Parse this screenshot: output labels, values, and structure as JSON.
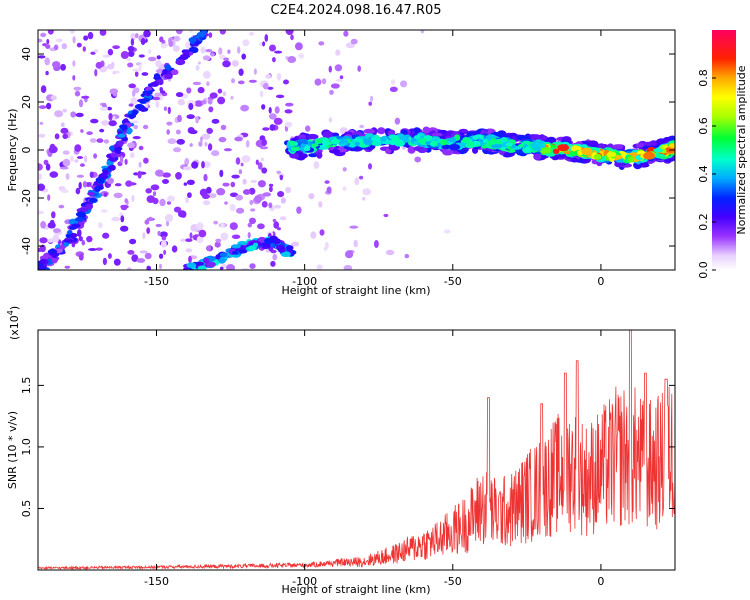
{
  "title": "C2E4.2024.098.16.47.R05",
  "chart_data": [
    {
      "type": "heatmap",
      "xlabel": "Height of straight line (km)",
      "ylabel": "Frequency (Hz)",
      "xlim": [
        -190,
        25
      ],
      "ylim": [
        -50,
        50
      ],
      "xticks": [
        -150,
        -100,
        -50,
        0
      ],
      "yticks": [
        -40,
        -20,
        0,
        20,
        40
      ],
      "colorbar": {
        "label": "Normalized spectral amplitude",
        "range": [
          0,
          1
        ],
        "ticks": [
          "0.0",
          "0.2",
          "0.4",
          "0.6",
          "0.8"
        ],
        "colors": [
          "#ffffff",
          "#f0e0ff",
          "#a040ff",
          "#6000ff",
          "#0000ff",
          "#00aaff",
          "#00ffcc",
          "#00ff00",
          "#aaff00",
          "#ffff00",
          "#ffaa00",
          "#ff0000",
          "#ff0060"
        ]
      },
      "features": [
        {
          "name": "main-trace",
          "points": [
            [
              -105,
              1
            ],
            [
              -90,
              3
            ],
            [
              -75,
              4
            ],
            [
              -60,
              4
            ],
            [
              -50,
              3
            ],
            [
              -40,
              4
            ],
            [
              -30,
              2
            ],
            [
              -20,
              1
            ],
            [
              -10,
              0
            ],
            [
              0,
              -2
            ],
            [
              10,
              -3
            ],
            [
              20,
              -1
            ],
            [
              25,
              1
            ]
          ]
        },
        {
          "name": "upper-diagonal",
          "points": [
            [
              -190,
              -50
            ],
            [
              -180,
              -38
            ],
            [
              -172,
              -20
            ],
            [
              -165,
              -5
            ],
            [
              -160,
              10
            ],
            [
              -150,
              28
            ],
            [
              -140,
              40
            ],
            [
              -133,
              50
            ]
          ]
        },
        {
          "name": "lower-diagonal",
          "points": [
            [
              -140,
              -50
            ],
            [
              -130,
              -46
            ],
            [
              -120,
              -40
            ],
            [
              -110,
              -38
            ],
            [
              -105,
              -43
            ]
          ]
        }
      ]
    },
    {
      "type": "line",
      "xlabel": "Height of straight line (km)",
      "ylabel": "SNR (10 * v/v)",
      "scale_label": "(x10",
      "scale_exp": "4",
      "scale_close": ")",
      "xlim": [
        -190,
        25
      ],
      "ylim": [
        0,
        1.95
      ],
      "xticks": [
        -150,
        -100,
        -50,
        0
      ],
      "yticks": [
        "0.5",
        "1.0",
        "1.5"
      ],
      "ytick_values": [
        0.5,
        1.0,
        1.5
      ],
      "line_color": "#ee3333",
      "envelope": {
        "x": [
          -190,
          -150,
          -120,
          -100,
          -90,
          -80,
          -70,
          -60,
          -55,
          -50,
          -45,
          -40,
          -35,
          -30,
          -25,
          -20,
          -15,
          -10,
          -5,
          0,
          5,
          10,
          15,
          20,
          25
        ],
        "y": [
          0.02,
          0.03,
          0.04,
          0.05,
          0.07,
          0.1,
          0.18,
          0.3,
          0.35,
          0.45,
          0.55,
          0.75,
          0.65,
          0.7,
          0.85,
          0.95,
          1.1,
          1.2,
          1.05,
          1.15,
          1.3,
          1.35,
          1.2,
          1.25,
          1.4
        ]
      },
      "peaks": [
        [
          -38,
          1.4
        ],
        [
          -20,
          1.35
        ],
        [
          -12,
          1.6
        ],
        [
          -8,
          1.7
        ],
        [
          10,
          1.95
        ],
        [
          15,
          1.6
        ],
        [
          22,
          1.55
        ]
      ]
    }
  ]
}
